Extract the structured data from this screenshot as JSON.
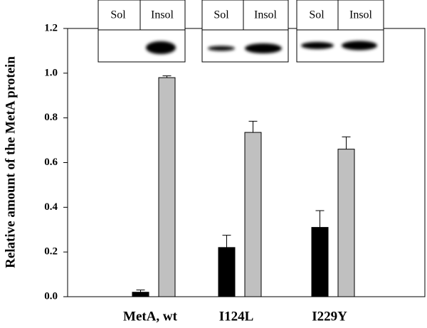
{
  "chart_data": {
    "type": "bar",
    "y_label": "Relative amount of the MetA protein",
    "categories": [
      "MetA, wt",
      "I124L",
      "I229Y"
    ],
    "series": [
      {
        "name": "Sol",
        "color": "#000000",
        "values": [
          0.02,
          0.22,
          0.31
        ],
        "errors": [
          0.01,
          0.055,
          0.075
        ]
      },
      {
        "name": "Insol",
        "color": "#c0c0c0",
        "values": [
          0.98,
          0.735,
          0.66
        ],
        "errors": [
          0.008,
          0.05,
          0.055
        ]
      }
    ],
    "ylim": [
      0,
      1.2
    ],
    "yticks": [
      {
        "value": 0,
        "label": "0.0"
      },
      0.2,
      0.4,
      0.6,
      0.8,
      {
        "value": 1,
        "label": "1.0"
      },
      1.2
    ]
  }
}
